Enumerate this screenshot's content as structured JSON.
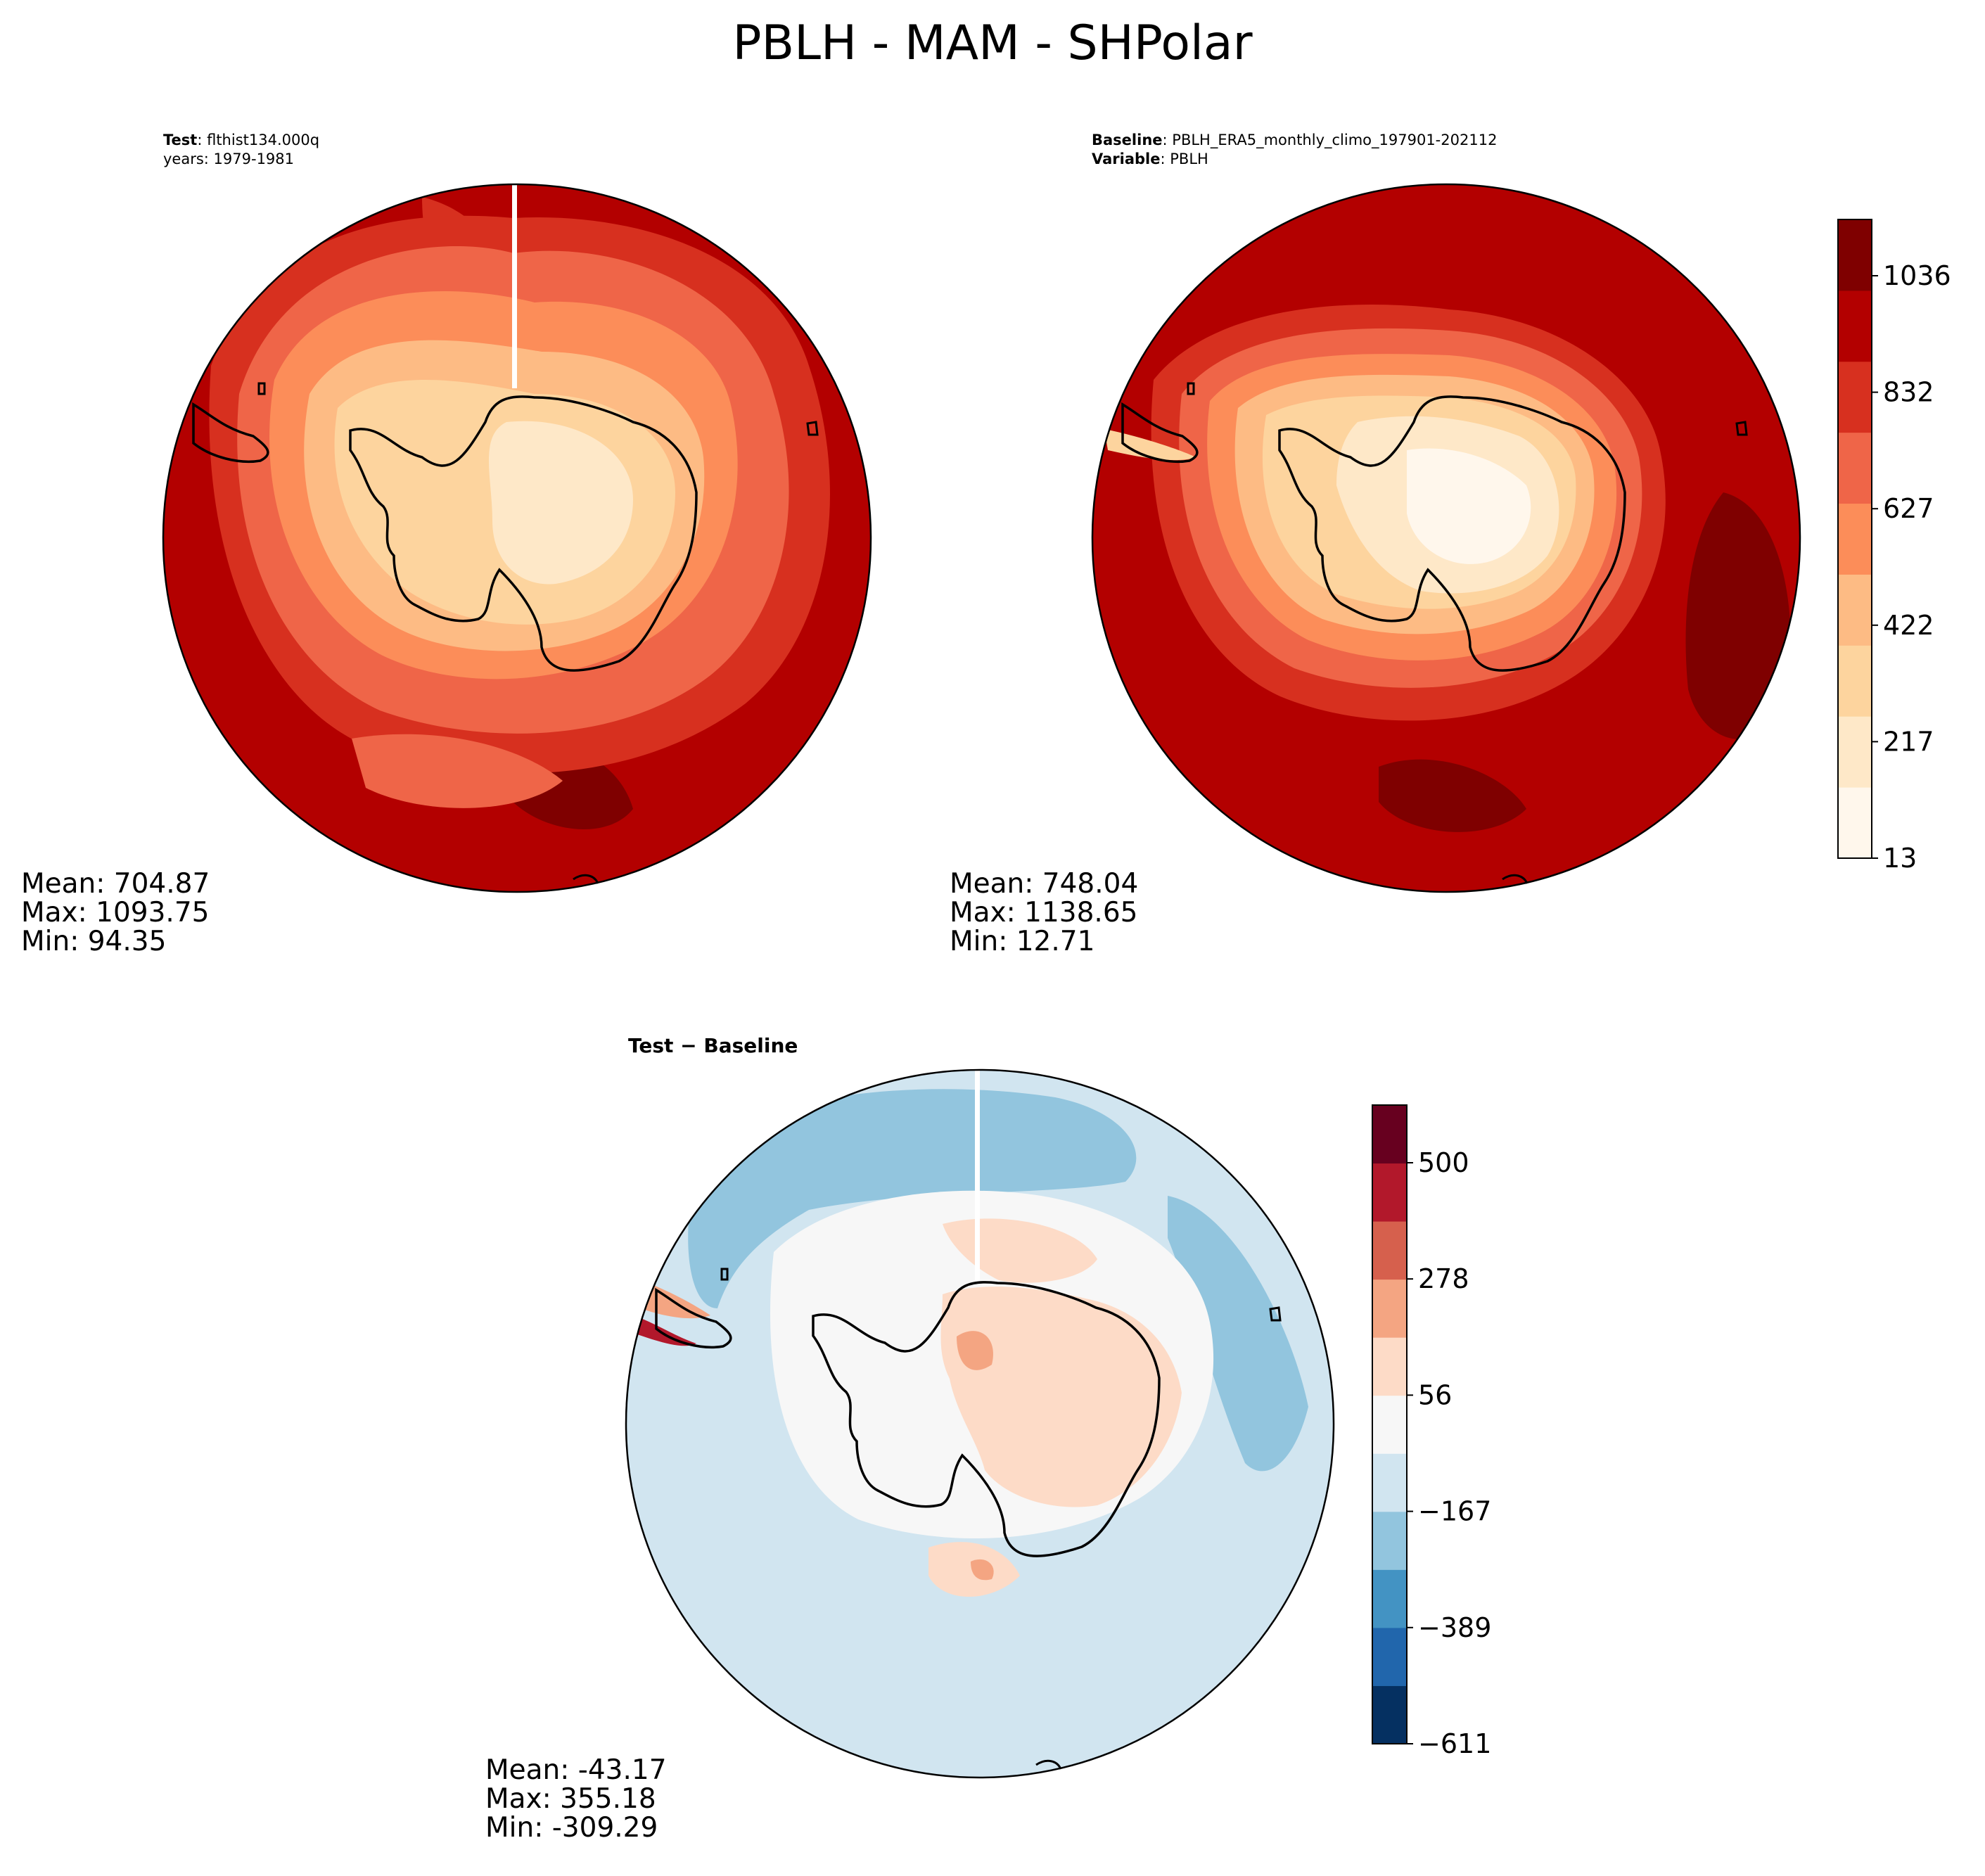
{
  "figure": {
    "title": "PBLH - MAM - SHPolar"
  },
  "chart_data": [
    {
      "type": "heatmap",
      "panel": "test",
      "projection": "south-polar-stereographic",
      "caption": {
        "label1": "Test",
        "value1": "flthist134.000q",
        "line2": "years: 1979-1981"
      },
      "stats": {
        "mean": "Mean: 704.87",
        "max": "Max: 1093.75",
        "min": "Min: 94.35"
      },
      "levels": [
        13,
        217,
        422,
        627,
        832,
        1036
      ],
      "colorscale": "OrRd-like (cream to dark red)"
    },
    {
      "type": "heatmap",
      "panel": "baseline",
      "projection": "south-polar-stereographic",
      "caption": {
        "label1": "Baseline",
        "value1": "PBLH_ERA5_monthly_climo_197901-202112",
        "label2": "Variable",
        "value2": "PBLH"
      },
      "stats": {
        "mean": "Mean: 748.04",
        "max": "Max: 1138.65",
        "min": "Min: 12.71"
      },
      "colorbar": {
        "ticks": [
          "13",
          "217",
          "422",
          "627",
          "832",
          "1036"
        ],
        "colors": [
          "#fff7ec",
          "#fee8c8",
          "#fdd49e",
          "#fdbb84",
          "#fc8d59",
          "#ef6548",
          "#d7301f",
          "#b30000",
          "#7f0000"
        ]
      }
    },
    {
      "type": "heatmap",
      "panel": "difference",
      "projection": "south-polar-stereographic",
      "caption": {
        "label1": "Test",
        "sep": " − ",
        "label2": "Baseline"
      },
      "stats": {
        "mean": "Mean: -43.17",
        "max": "Max: 355.18",
        "min": "Min: -309.29"
      },
      "colorbar": {
        "ticks": [
          "−611",
          "−389",
          "−167",
          "56",
          "278",
          "500"
        ],
        "colors": [
          "#053061",
          "#2166ac",
          "#4393c3",
          "#92c5de",
          "#d1e5f0",
          "#f7f7f7",
          "#fddbc7",
          "#f4a582",
          "#d6604d",
          "#b2182b",
          "#67001f"
        ]
      }
    }
  ]
}
